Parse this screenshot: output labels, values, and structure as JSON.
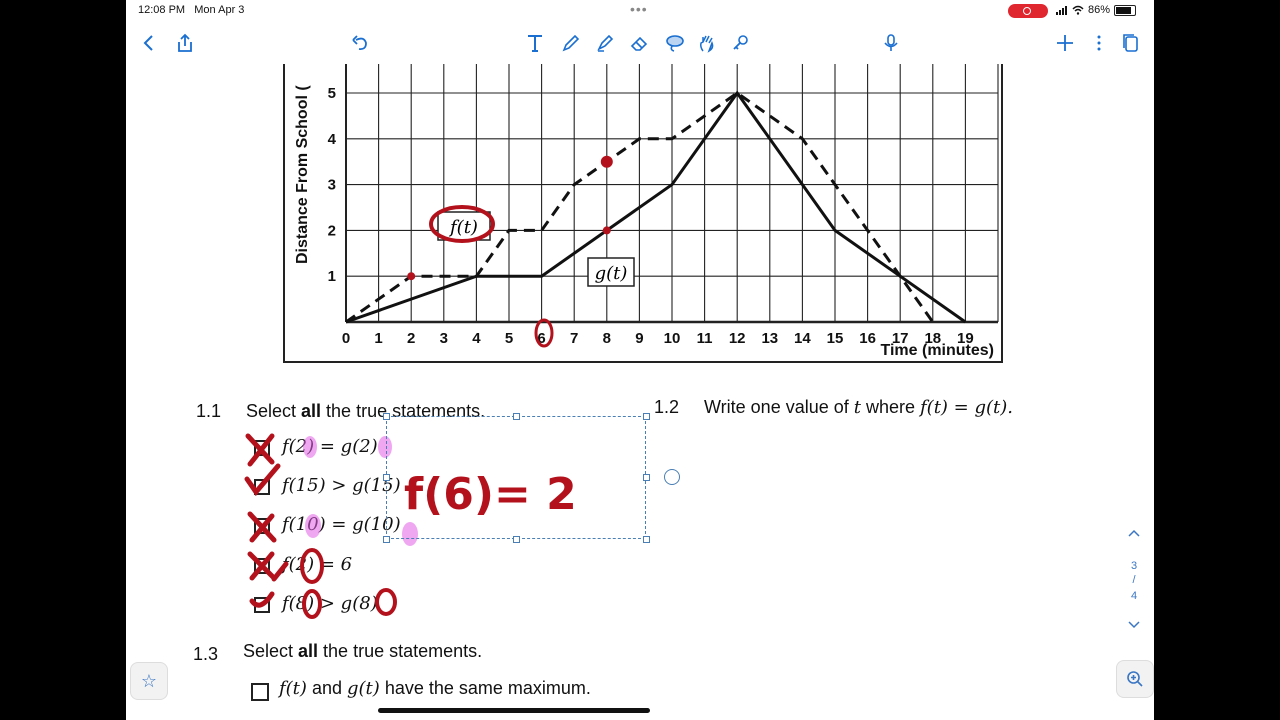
{
  "status": {
    "time": "12:08 PM",
    "date": "Mon Apr 3",
    "battery": "86%"
  },
  "toolbar": {
    "left": [
      "back-icon",
      "share-icon",
      "undo-icon"
    ],
    "tools": [
      "text-tool-icon",
      "pen-tool-icon",
      "highlighter-icon",
      "eraser-icon",
      "lasso-icon",
      "hand-icon",
      "shapes-icon"
    ],
    "right": [
      "microphone-icon",
      "add-page-icon",
      "more-icon",
      "pages-icon"
    ]
  },
  "graph": {
    "ylabel": "Distance From School (",
    "xlabel": "Time (minutes)",
    "x_ticks": [
      "0",
      "1",
      "2",
      "3",
      "4",
      "5",
      "6",
      "7",
      "8",
      "9",
      "10",
      "11",
      "12",
      "13",
      "14",
      "15",
      "16",
      "17",
      "18",
      "19"
    ],
    "y_ticks": [
      "1",
      "2",
      "3",
      "4",
      "5"
    ],
    "f_label": "f(t)",
    "g_label": "g(t)"
  },
  "chart_data": {
    "type": "line",
    "xlabel": "Time (minutes)",
    "ylabel": "Distance From School (",
    "xlim": [
      0,
      20
    ],
    "ylim": [
      0,
      5.5
    ],
    "series": [
      {
        "name": "f(t)",
        "style": "dashed",
        "points": [
          [
            0,
            0
          ],
          [
            2,
            1
          ],
          [
            4,
            1
          ],
          [
            5,
            2
          ],
          [
            6,
            2
          ],
          [
            7,
            3
          ],
          [
            9,
            4
          ],
          [
            10,
            4
          ],
          [
            12,
            5
          ],
          [
            14,
            4
          ],
          [
            15,
            3
          ],
          [
            17,
            1
          ],
          [
            18,
            0
          ]
        ]
      },
      {
        "name": "g(t)",
        "style": "solid",
        "points": [
          [
            0,
            0
          ],
          [
            4,
            1
          ],
          [
            6,
            1
          ],
          [
            10,
            3
          ],
          [
            12,
            5
          ],
          [
            15,
            2
          ],
          [
            19,
            0
          ]
        ]
      }
    ]
  },
  "q11": {
    "number": "1.1",
    "prompt_pre": "Select ",
    "prompt_bold": "all",
    "prompt_post": " the true statements.",
    "options": [
      "f(2) = g(2)",
      "f(15) > g(15)",
      "f(10) = g(10)",
      "f(2) = 6",
      "f(8) > g(8)"
    ]
  },
  "q12": {
    "number": "1.2",
    "prompt_pre": "Write one value of ",
    "prompt_var": "t",
    "prompt_mid": " where ",
    "prompt_eq": "f(t) = g(t)."
  },
  "q13": {
    "number": "1.3",
    "prompt_pre": "Select ",
    "prompt_bold": "all",
    "prompt_post": " the true statements.",
    "option1_a": "f(t)",
    "option1_mid": " and ",
    "option1_b": "g(t)",
    "option1_end": " have the same maximum."
  },
  "handwriting": {
    "answer": "f(6)= 2"
  },
  "pager": {
    "current": "3",
    "total": "4"
  }
}
